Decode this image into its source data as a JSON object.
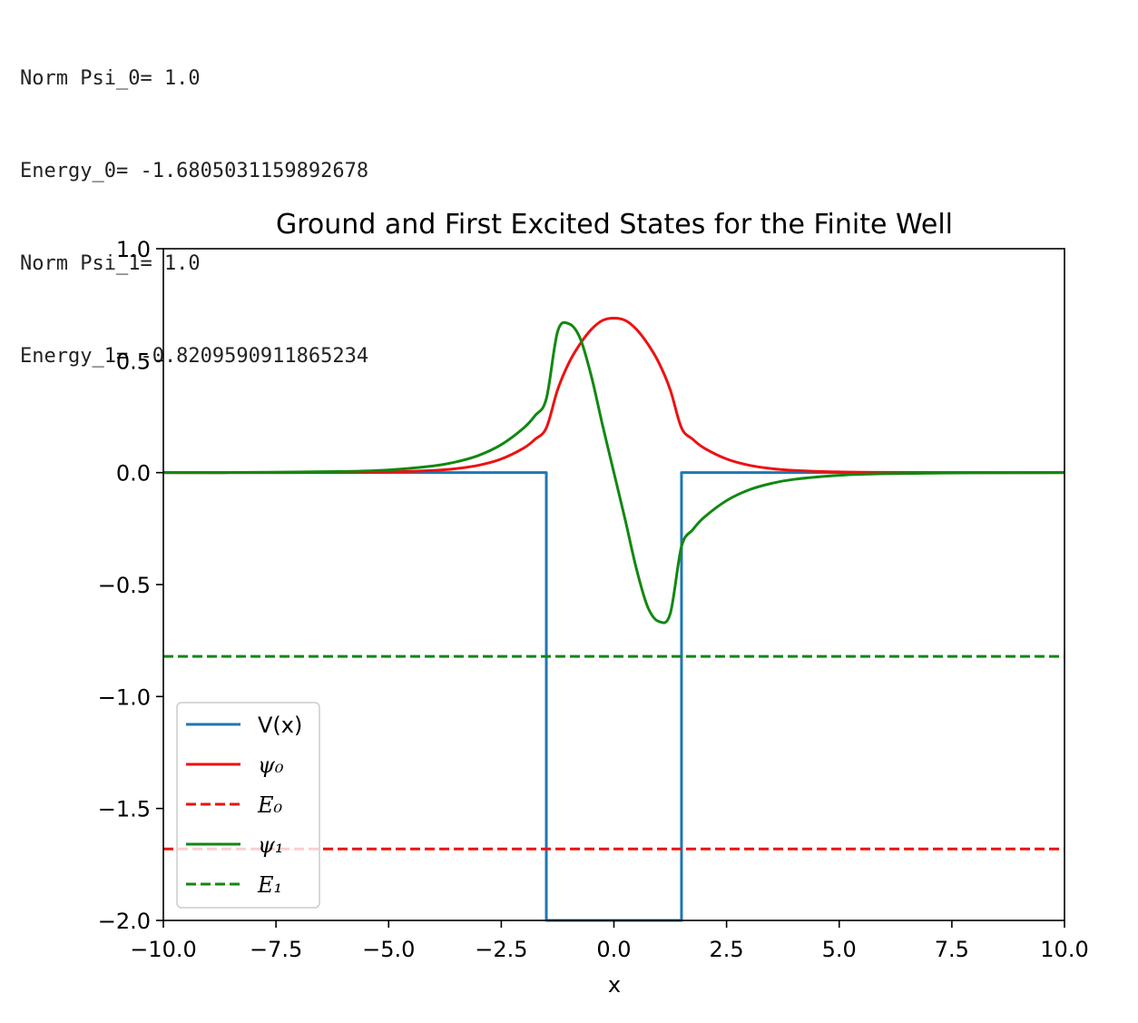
{
  "console_lines": [
    "Norm Psi_0= 1.0",
    "Energy_0= -1.6805031159892678",
    "Norm Psi_1= 1.0",
    "Energy_1= -0.8209590911865234"
  ],
  "chart_data": {
    "type": "line",
    "title": "Ground and First Excited States for the Finite Well",
    "xlabel": "x",
    "ylabel": "",
    "xlim": [
      -10.0,
      10.0
    ],
    "ylim": [
      -2.0,
      1.0
    ],
    "xticks": [
      -10.0,
      -7.5,
      -5.0,
      -2.5,
      0.0,
      2.5,
      5.0,
      7.5,
      10.0
    ],
    "xtick_labels": [
      "−10.0",
      "−7.5",
      "−5.0",
      "−2.5",
      "0.0",
      "2.5",
      "5.0",
      "7.5",
      "10.0"
    ],
    "yticks": [
      1.0,
      0.5,
      0.0,
      -0.5,
      -1.0,
      -1.5,
      -2.0
    ],
    "ytick_labels": [
      "1.0",
      "0.5",
      "0.0",
      "−0.5",
      "−1.0",
      "−1.5",
      "−2.0"
    ],
    "grid": false,
    "legend_position": "lower-left",
    "series": [
      {
        "name": "V(x)",
        "color": "#1f77b4",
        "style": "solid",
        "x": [
          -10.0,
          -1.5,
          -1.5,
          1.5,
          1.5,
          10.0
        ],
        "y": [
          0.0,
          0.0,
          -2.0,
          -2.0,
          0.0,
          0.0
        ]
      },
      {
        "name": "ψ₀",
        "color": "#ee1111",
        "style": "solid",
        "x": [
          -10.0,
          -8.0,
          -6.0,
          -5.0,
          -4.0,
          -3.5,
          -3.0,
          -2.5,
          -2.0,
          -1.75,
          -1.5,
          -1.25,
          -1.0,
          -0.75,
          -0.5,
          -0.25,
          0.0,
          0.25,
          0.5,
          0.75,
          1.0,
          1.25,
          1.5,
          1.75,
          2.0,
          2.5,
          3.0,
          3.5,
          4.0,
          5.0,
          6.0,
          8.0,
          10.0
        ],
        "y": [
          0.0,
          0.0,
          0.001,
          0.003,
          0.01,
          0.018,
          0.033,
          0.061,
          0.11,
          0.149,
          0.2,
          0.37,
          0.49,
          0.575,
          0.64,
          0.68,
          0.69,
          0.68,
          0.64,
          0.575,
          0.49,
          0.37,
          0.2,
          0.149,
          0.11,
          0.061,
          0.033,
          0.018,
          0.01,
          0.003,
          0.001,
          0.0,
          0.0
        ]
      },
      {
        "name": "E₀",
        "color": "#ee1111",
        "style": "dashed",
        "x": [
          -10.0,
          10.0
        ],
        "y": [
          -1.6805031159892678,
          -1.6805031159892678
        ]
      },
      {
        "name": "ψ₁",
        "color": "#118811",
        "style": "solid",
        "x": [
          -10.0,
          -8.0,
          -6.0,
          -5.0,
          -4.0,
          -3.5,
          -3.0,
          -2.5,
          -2.0,
          -1.75,
          -1.5,
          -1.25,
          -1.0,
          -0.75,
          -0.5,
          -0.25,
          0.0,
          0.25,
          0.5,
          0.75,
          1.0,
          1.25,
          1.5,
          1.75,
          2.0,
          2.5,
          3.0,
          3.5,
          4.0,
          5.0,
          6.0,
          8.0,
          10.0
        ],
        "y": [
          0.0,
          0.001,
          0.005,
          0.012,
          0.03,
          0.048,
          0.077,
          0.125,
          0.2,
          0.255,
          0.33,
          0.63,
          0.665,
          0.6,
          0.43,
          0.21,
          0.0,
          -0.21,
          -0.43,
          -0.6,
          -0.665,
          -0.63,
          -0.33,
          -0.255,
          -0.2,
          -0.125,
          -0.077,
          -0.048,
          -0.03,
          -0.012,
          -0.005,
          -0.001,
          0.0
        ]
      },
      {
        "name": "E₁",
        "color": "#118811",
        "style": "dashed",
        "x": [
          -10.0,
          10.0
        ],
        "y": [
          -0.8209590911865234,
          -0.8209590911865234
        ]
      }
    ]
  }
}
